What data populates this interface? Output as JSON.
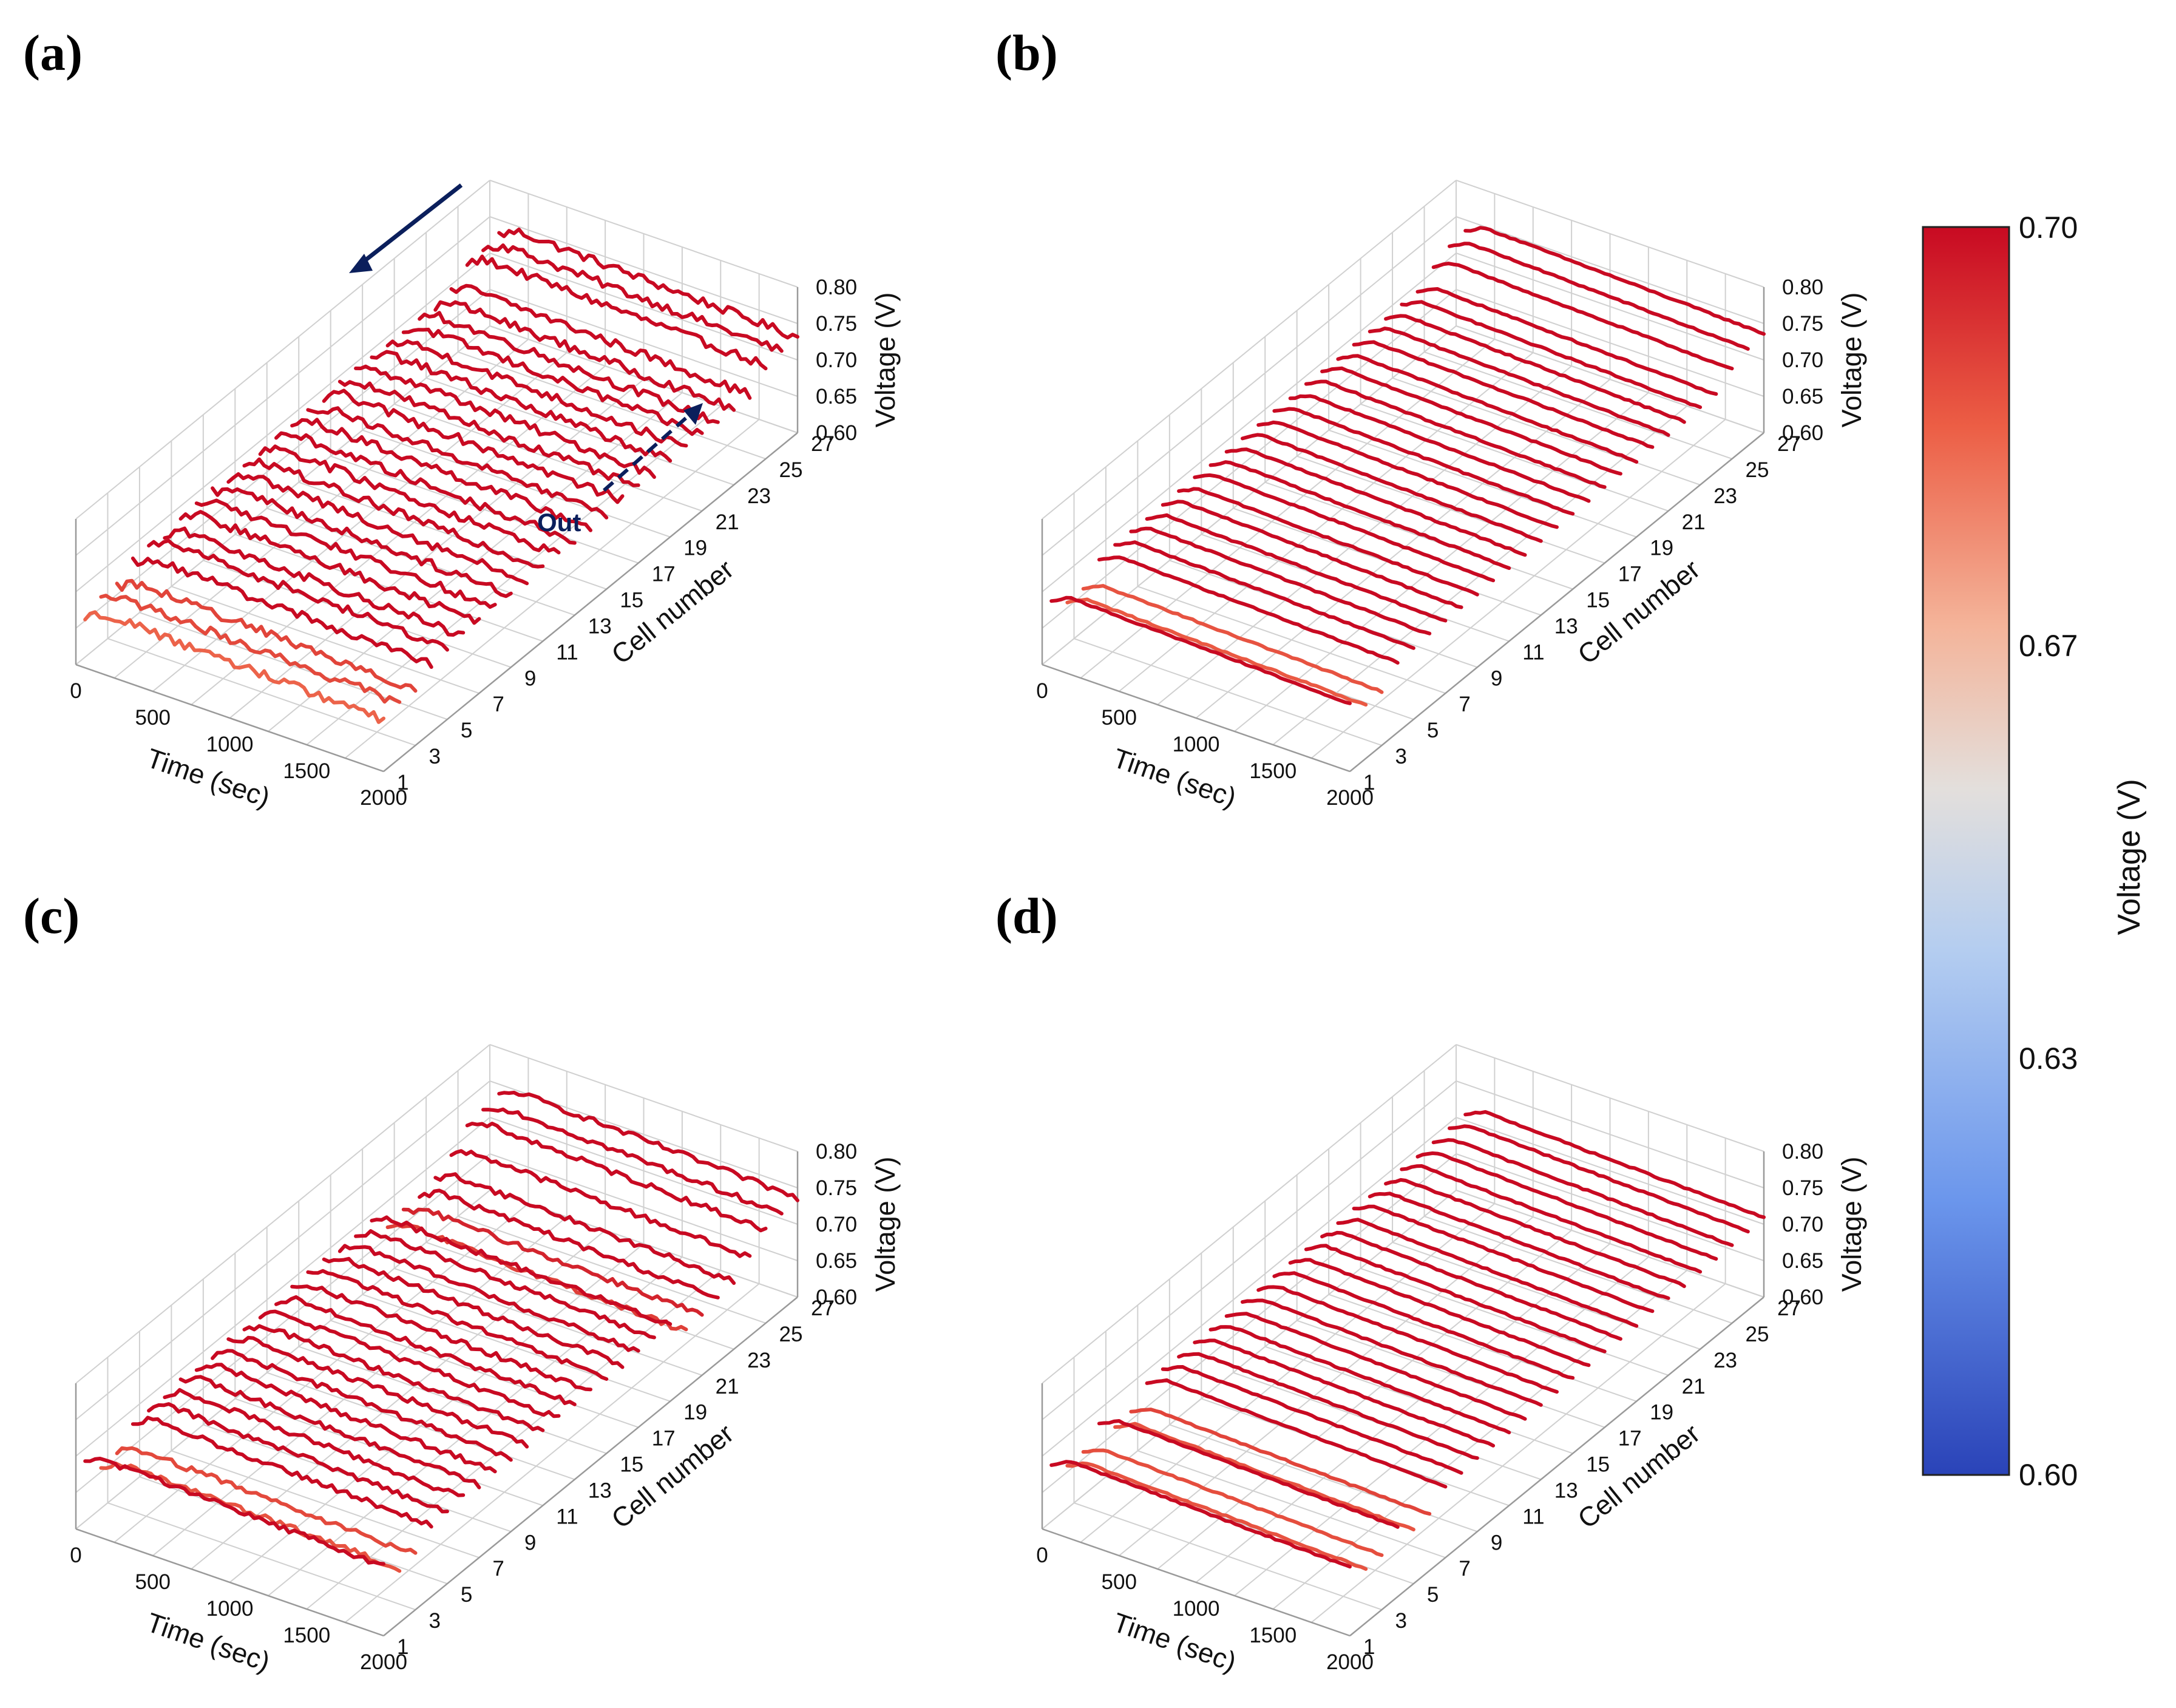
{
  "chart_data": [
    {
      "panel": "(a)",
      "type": "line",
      "x": {
        "label": "Time (sec)",
        "ticks": [
          0,
          500,
          1000,
          1500,
          2000
        ],
        "range": [
          0,
          2000
        ]
      },
      "y": {
        "label": "Cell number",
        "ticks": [
          1,
          3,
          5,
          7,
          9,
          11,
          13,
          15,
          17,
          19,
          21,
          23,
          25,
          27
        ],
        "range": [
          1,
          27
        ]
      },
      "z": {
        "label": "Voltage (V)",
        "ticks": [
          0.6,
          0.65,
          0.7,
          0.75,
          0.8
        ],
        "range": [
          0.6,
          0.8
        ]
      },
      "cell_voltage": [
        0.683,
        0.688,
        0.689,
        0.705,
        0.71,
        0.708,
        0.711,
        0.712,
        0.712,
        0.713,
        0.713,
        0.714,
        0.714,
        0.715,
        0.715,
        0.716,
        0.716,
        0.716,
        0.717,
        0.717,
        0.717,
        0.716,
        0.716,
        0.718,
        0.74,
        0.742,
        0.743
      ],
      "noise": 0.012,
      "annotations": [
        {
          "text": "Out"
        }
      ]
    },
    {
      "panel": "(b)",
      "type": "line",
      "x": {
        "label": "Time (sec)",
        "ticks": [
          0,
          500,
          1000,
          1500,
          2000
        ],
        "range": [
          0,
          2000
        ]
      },
      "y": {
        "label": "Cell number",
        "ticks": [
          1,
          3,
          5,
          7,
          9,
          11,
          13,
          15,
          17,
          19,
          21,
          23,
          25,
          27
        ],
        "range": [
          1,
          27
        ]
      },
      "z": {
        "label": "Voltage (V)",
        "ticks": [
          0.6,
          0.65,
          0.7,
          0.75,
          0.8
        ],
        "range": [
          0.6,
          0.8
        ]
      },
      "cell_voltage": [
        0.705,
        0.685,
        0.686,
        0.708,
        0.71,
        0.711,
        0.711,
        0.712,
        0.712,
        0.713,
        0.713,
        0.713,
        0.714,
        0.714,
        0.715,
        0.715,
        0.716,
        0.716,
        0.716,
        0.717,
        0.717,
        0.717,
        0.718,
        0.718,
        0.735,
        0.745,
        0.748
      ],
      "noise": 0.002
    },
    {
      "panel": "(c)",
      "type": "line",
      "x": {
        "label": "Time (sec)",
        "ticks": [
          0,
          500,
          1000,
          1500,
          2000
        ],
        "range": [
          0,
          2000
        ]
      },
      "y": {
        "label": "Cell number",
        "ticks": [
          1,
          3,
          5,
          7,
          9,
          11,
          13,
          15,
          17,
          19,
          21,
          23,
          25,
          27
        ],
        "range": [
          1,
          27
        ]
      },
      "z": {
        "label": "Voltage (V)",
        "ticks": [
          0.6,
          0.65,
          0.7,
          0.75,
          0.8
        ],
        "range": [
          0.6,
          0.8
        ]
      },
      "cell_voltage": [
        0.708,
        0.686,
        0.688,
        0.71,
        0.711,
        0.712,
        0.712,
        0.713,
        0.713,
        0.714,
        0.714,
        0.714,
        0.715,
        0.715,
        0.716,
        0.716,
        0.716,
        0.717,
        0.717,
        0.69,
        0.695,
        0.7,
        0.705,
        0.72,
        0.74,
        0.745,
        0.748
      ],
      "noise": 0.008
    },
    {
      "panel": "(d)",
      "type": "line",
      "x": {
        "label": "Time (sec)",
        "ticks": [
          0,
          500,
          1000,
          1500,
          2000
        ],
        "range": [
          0,
          2000
        ]
      },
      "y": {
        "label": "Cell number",
        "ticks": [
          1,
          3,
          5,
          7,
          9,
          11,
          13,
          15,
          17,
          19,
          21,
          23,
          25,
          27
        ],
        "range": [
          1,
          27
        ]
      },
      "z": {
        "label": "Voltage (V)",
        "ticks": [
          0.6,
          0.65,
          0.7,
          0.75,
          0.8
        ],
        "range": [
          0.6,
          0.8
        ]
      },
      "cell_voltage": [
        0.706,
        0.686,
        0.687,
        0.708,
        0.686,
        0.689,
        0.71,
        0.711,
        0.712,
        0.712,
        0.713,
        0.713,
        0.714,
        0.714,
        0.715,
        0.715,
        0.716,
        0.716,
        0.716,
        0.717,
        0.717,
        0.717,
        0.718,
        0.718,
        0.719,
        0.72,
        0.721
      ],
      "noise": 0.002
    }
  ],
  "colorbar": {
    "label": "Voltage (V)",
    "ticks": [
      "0.70",
      "0.67",
      "0.63",
      "0.60"
    ],
    "range": [
      0.6,
      0.7
    ],
    "colors": {
      "low": "#3b4cc0",
      "mid": "#dddddd",
      "high": "#c0051f"
    }
  }
}
